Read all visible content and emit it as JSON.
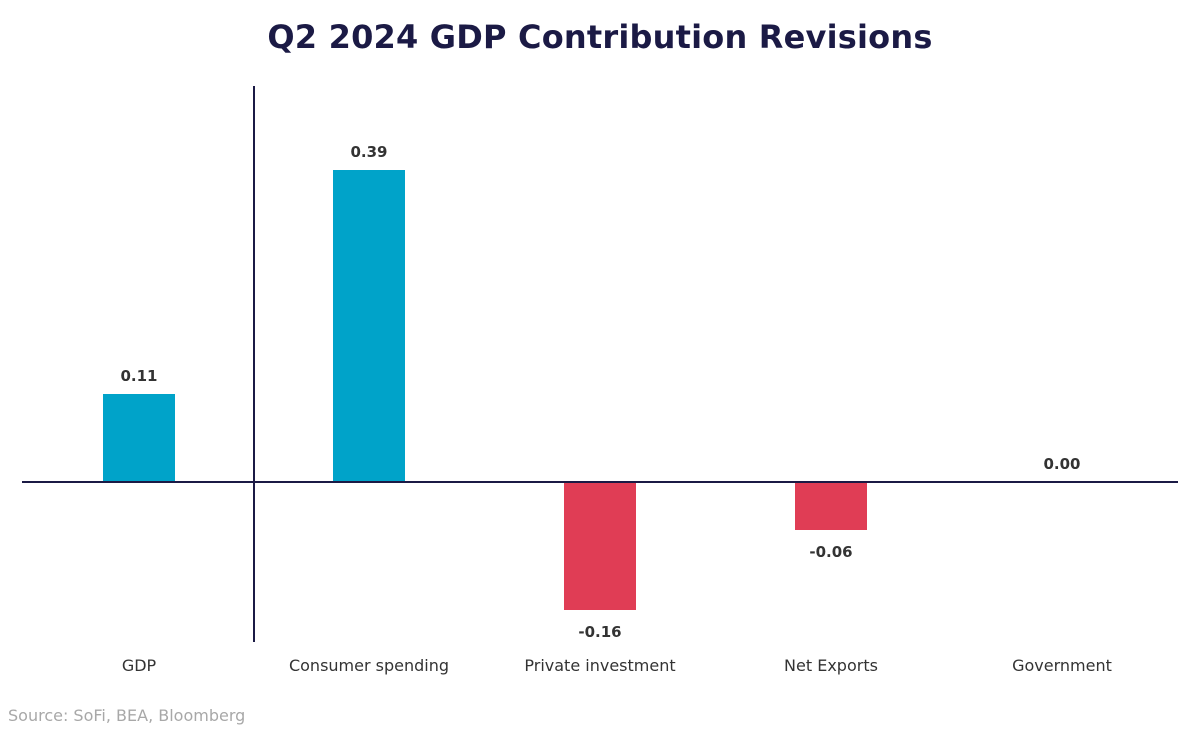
{
  "chart_data": {
    "type": "bar",
    "title": "Q2 2024 GDP Contribution Revisions",
    "categories": [
      "GDP",
      "Consumer spending",
      "Private investment",
      "Net Exports",
      "Government"
    ],
    "values": [
      0.11,
      0.39,
      -0.16,
      -0.06,
      0.0
    ],
    "value_labels": [
      "0.11",
      "0.39",
      "-0.16",
      "-0.06",
      "0.00"
    ],
    "ylim": [
      -0.2,
      0.5
    ],
    "grid": false,
    "legend": "none",
    "colors": {
      "positive": "#00a3c9",
      "negative": "#e03d55",
      "axis": "#1b1a45"
    }
  },
  "source": "Source: SoFi, BEA, Bloomberg"
}
